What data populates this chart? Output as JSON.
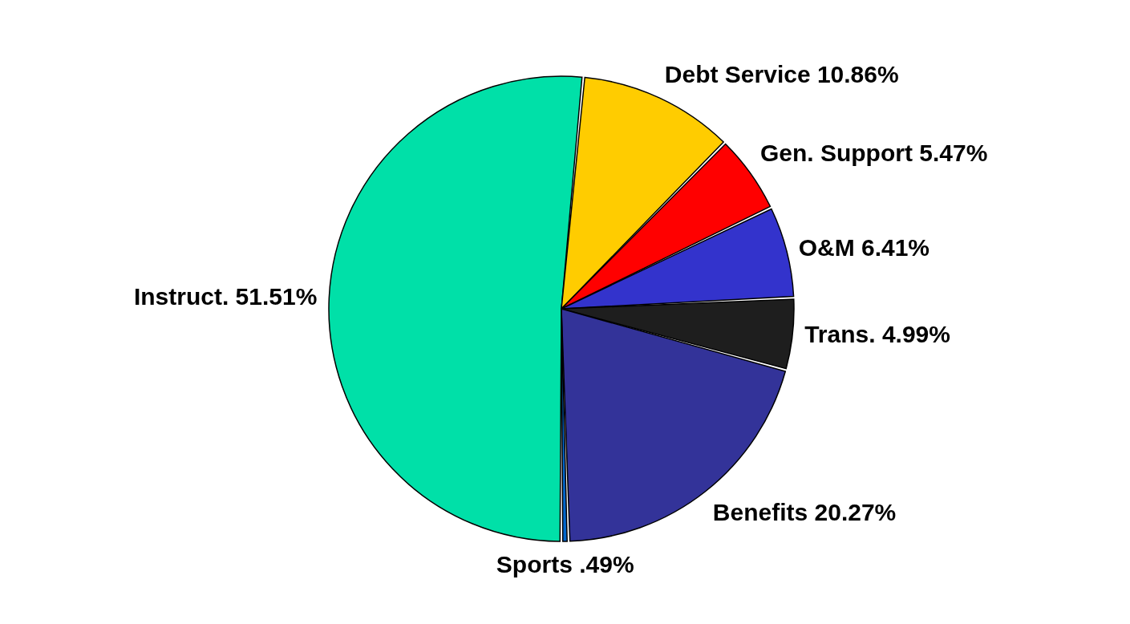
{
  "chart_data": {
    "type": "pie",
    "categories": [
      "Instruct.",
      "Debt Service",
      "Gen. Support",
      "O&M",
      "Trans.",
      "Benefits",
      "Sports"
    ],
    "values": [
      51.51,
      10.86,
      5.47,
      6.41,
      4.99,
      20.27,
      0.49
    ],
    "value_labels": [
      "51.51%",
      "10.86%",
      "5.47%",
      "6.41%",
      "4.99%",
      "20.27%",
      ".49%"
    ],
    "colors": [
      "#00e0a8",
      "#ffcc00",
      "#ff0000",
      "#3333cc",
      "#1e1e1e",
      "#333399",
      "#0066cc"
    ],
    "legend": false
  }
}
